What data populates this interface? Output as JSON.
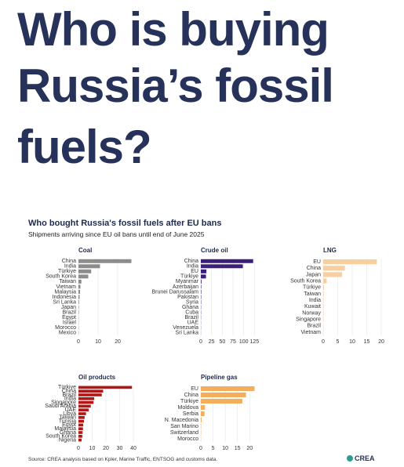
{
  "headline": [
    "Who is buying",
    "Russia’s fossil",
    "fuels?"
  ],
  "title": "Who bought Russia's fossil fuels after EU bans",
  "subtitle": "Shipments arriving since EU oil bans until end of June 2025",
  "source": "Source: CREA analysis based on Kpler, Marine Traffic, ENTSOG and customs data.",
  "logo": "CREA",
  "chart_data": [
    {
      "type": "bar",
      "title": "Coal",
      "color": "#8c8c8c",
      "categories": [
        "China",
        "India",
        "Türkiye",
        "South Korea",
        "Taiwan",
        "Vietnam",
        "Malaysia",
        "Indonesia",
        "Sri Lanka",
        "Japan",
        "Brazil",
        "Egypt",
        "Israel",
        "Morocco",
        "Mexico"
      ],
      "values": [
        27,
        11,
        6.5,
        5,
        1.5,
        1,
        0.8,
        0.6,
        0.3,
        0.2,
        0.2,
        0.1,
        0.1,
        0.1,
        0.1
      ],
      "xlim": [
        0,
        28
      ],
      "xticks": [
        0,
        10,
        20
      ]
    },
    {
      "type": "bar",
      "title": "Crude oil",
      "color": "#3b1f7a",
      "categories": [
        "China",
        "India",
        "EU",
        "Türkiye",
        "Myanmar",
        "Azerbaijan",
        "Brunei Darussalam",
        "Pakistan",
        "Syria",
        "Ghana",
        "Cuba",
        "Brazil",
        "UAE",
        "Venezuela",
        "Sri Lanka"
      ],
      "values": [
        122,
        98,
        13,
        12,
        1.5,
        1,
        1,
        0.8,
        0.7,
        0.5,
        0.5,
        0.4,
        0.3,
        0.3,
        0.2
      ],
      "xlim": [
        0,
        128
      ],
      "xticks": [
        0,
        25,
        50,
        75,
        100,
        125
      ]
    },
    {
      "type": "bar",
      "title": "LNG",
      "color": "#f8cfa0",
      "categories": [
        "EU",
        "China",
        "Japan",
        "South Korea",
        "Türkiye",
        "Taiwan",
        "India",
        "Kuwait",
        "Norway",
        "Singapore",
        "Brazil",
        "Vietnam"
      ],
      "values": [
        18.5,
        7.5,
        6.5,
        1.2,
        0.3,
        0.2,
        0.1,
        0.1,
        0.1,
        0.1,
        0.05,
        0.05
      ],
      "xlim": [
        0,
        20
      ],
      "xticks": [
        0,
        5,
        10,
        15,
        20
      ]
    },
    {
      "type": "bar",
      "title": "Oil products",
      "color": "#b01818",
      "categories": [
        "Türkiye",
        "China",
        "Brazil",
        "India",
        "Singapore",
        "Saudi Arabia",
        "UAE",
        "Libya",
        "Taiwan",
        "Tunisia",
        "Egypt",
        "Malaysia",
        "Ghana",
        "South Korea",
        "Nigeria"
      ],
      "values": [
        39,
        18,
        17,
        11.5,
        11,
        9,
        7.5,
        5.5,
        4.5,
        4,
        3.5,
        3.3,
        3,
        2.8,
        2.3
      ],
      "xlim": [
        0,
        40
      ],
      "xticks": [
        0,
        10,
        20,
        30,
        40
      ]
    },
    {
      "type": "bar",
      "title": "Pipeline gas",
      "color": "#f2ae5c",
      "categories": [
        "EU",
        "China",
        "Türkiye",
        "Moldova",
        "Serbia",
        "N. Macedonia",
        "San Marino",
        "Switzerland",
        "Morocco"
      ],
      "values": [
        22,
        18.5,
        17,
        1.7,
        1.5,
        0.3,
        0.1,
        0.1,
        0.05
      ],
      "xlim": [
        0,
        22.5
      ],
      "xticks": [
        0,
        5,
        10,
        15,
        20
      ]
    }
  ]
}
